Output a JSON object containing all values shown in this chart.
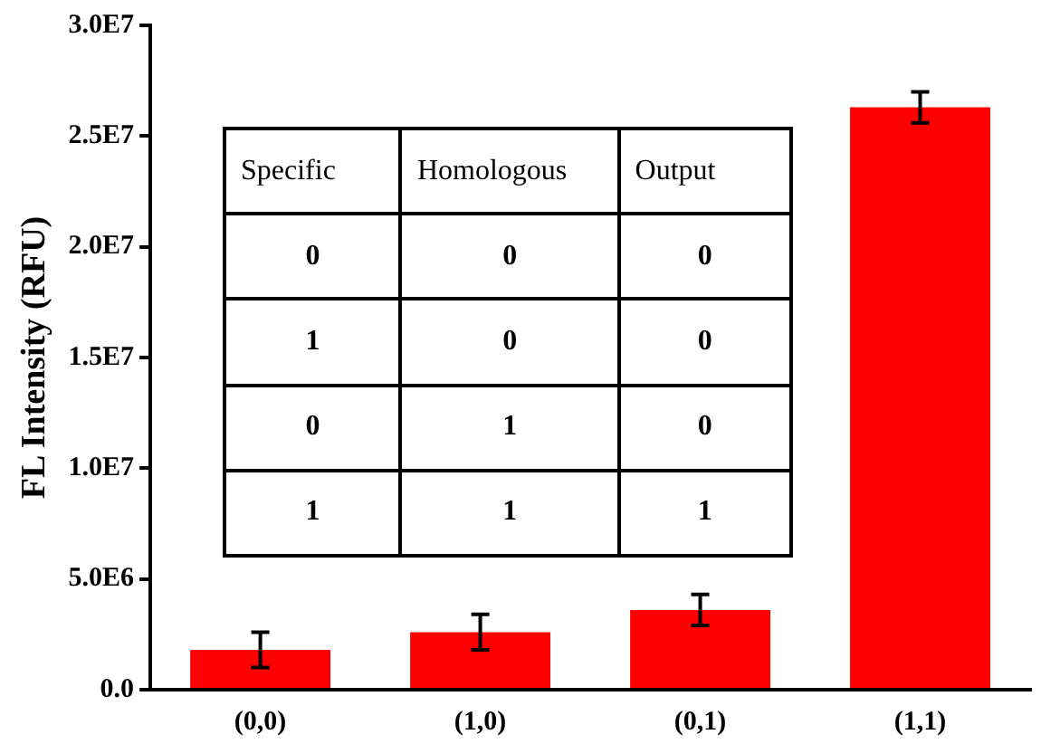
{
  "chart_data": {
    "type": "bar",
    "ylabel": "FL Intensity (RFU)",
    "categories": [
      "(0,0)",
      "(1,0)",
      "(0,1)",
      "(1,1)"
    ],
    "series": [
      {
        "color": "#ff0000",
        "values": [
          1800000,
          2600000,
          3600000,
          26300000
        ],
        "errors": [
          800000,
          800000,
          700000,
          700000
        ]
      }
    ],
    "ylim": [
      0,
      30000000
    ],
    "yticks": [
      {
        "value": 0,
        "label": "0.0"
      },
      {
        "value": 5000000,
        "label": "5.0E6"
      },
      {
        "value": 10000000,
        "label": "1.0E7"
      },
      {
        "value": 15000000,
        "label": "1.5E7"
      },
      {
        "value": 20000000,
        "label": "2.0E7"
      },
      {
        "value": 25000000,
        "label": "2.5E7"
      },
      {
        "value": 30000000,
        "label": "3.0E7"
      }
    ],
    "grid": false,
    "legend": false,
    "annotations": [
      "Specific",
      "Homologous",
      "Output",
      "0",
      "0",
      "0",
      "1",
      "0",
      "0",
      "0",
      "1",
      "0",
      "1",
      "1",
      "1"
    ]
  }
}
